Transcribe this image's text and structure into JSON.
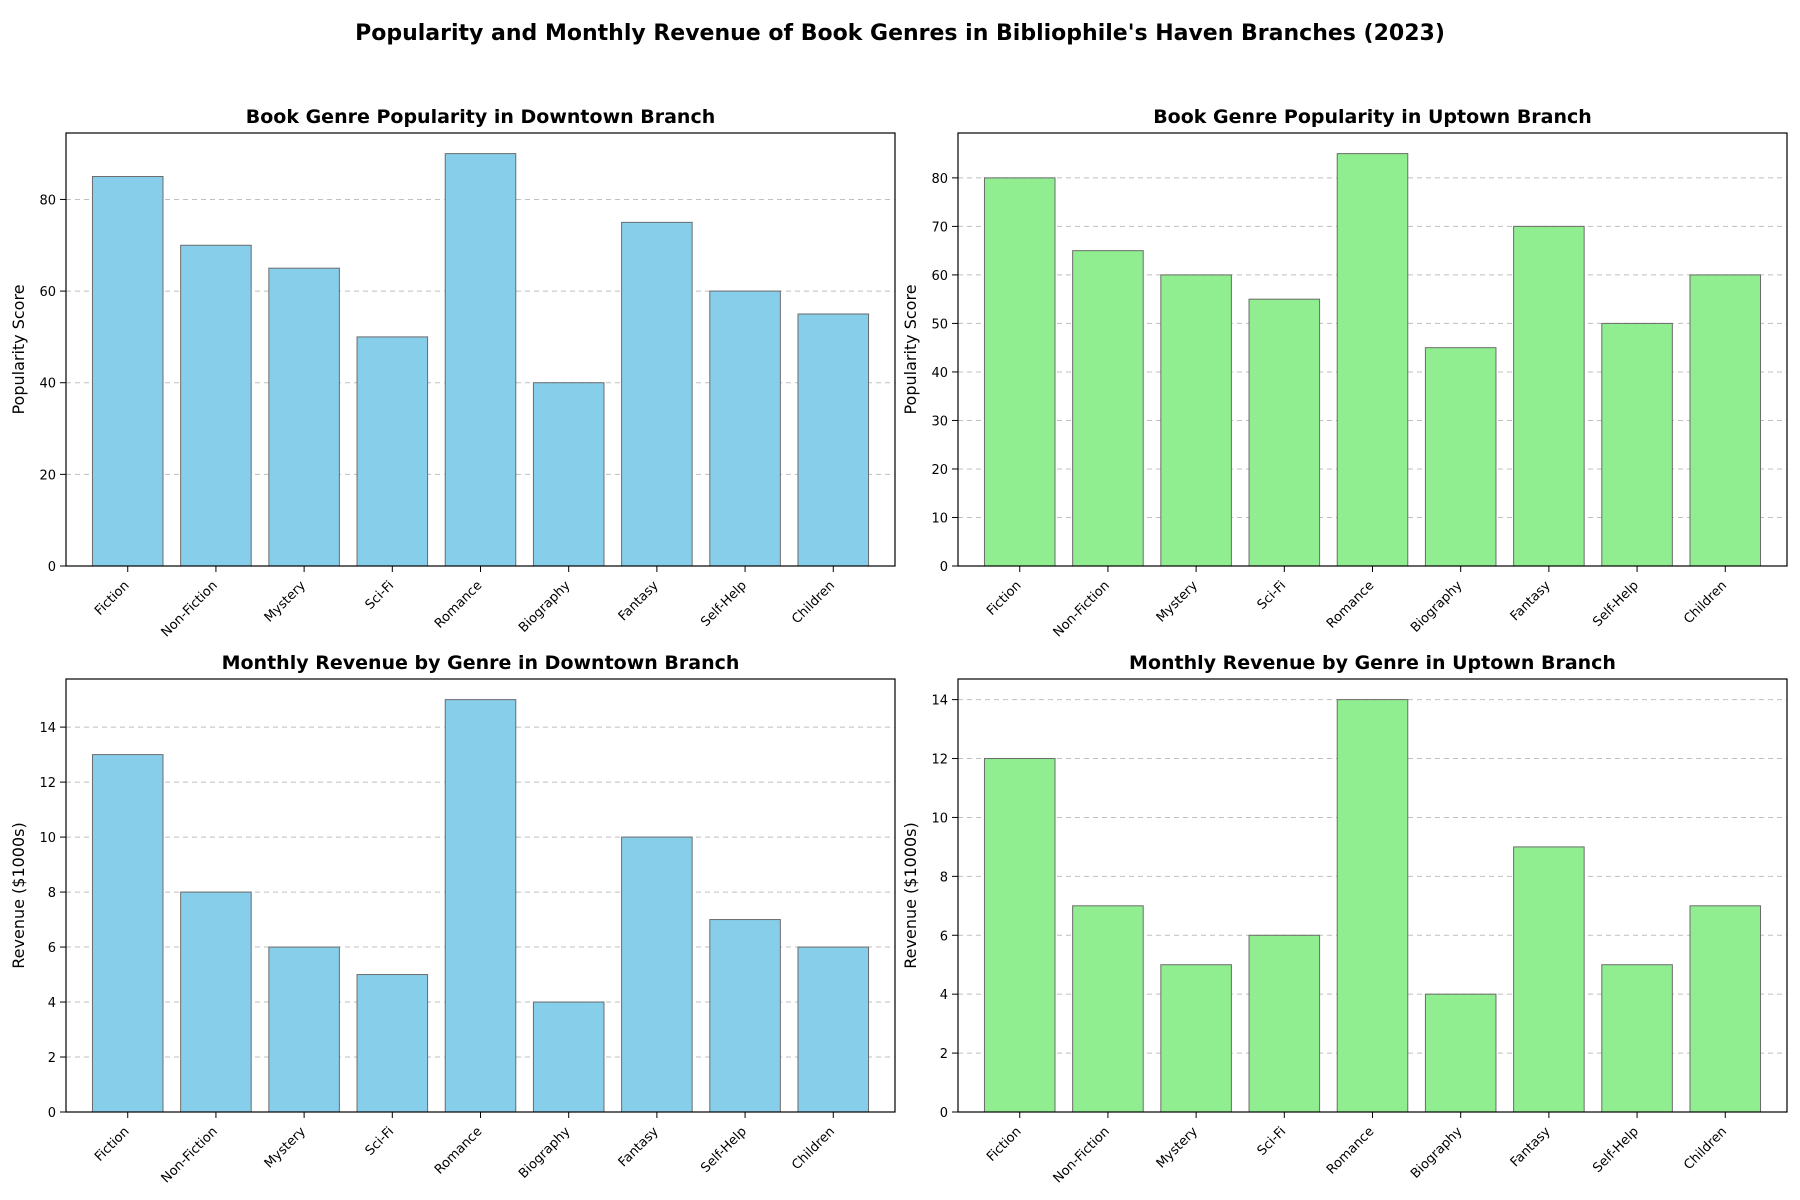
{
  "figure": {
    "title": "Popularity and Monthly Revenue of Book Genres in Bibliophile's Haven Branches (2023)"
  },
  "chart_data": [
    {
      "type": "bar",
      "title": "Book Genre Popularity in Downtown Branch",
      "xlabel": "",
      "ylabel": "Popularity Score",
      "categories": [
        "Fiction",
        "Non-Fiction",
        "Mystery",
        "Sci-Fi",
        "Romance",
        "Biography",
        "Fantasy",
        "Self-Help",
        "Children"
      ],
      "values": [
        85,
        70,
        65,
        50,
        90,
        40,
        75,
        60,
        55
      ],
      "ylim": [
        0,
        94.5
      ],
      "yticks": [
        0,
        20,
        40,
        60,
        80
      ],
      "color": "#87CEEB",
      "grid": "y-dashed"
    },
    {
      "type": "bar",
      "title": "Book Genre Popularity in Uptown Branch",
      "xlabel": "",
      "ylabel": "Popularity Score",
      "categories": [
        "Fiction",
        "Non-Fiction",
        "Mystery",
        "Sci-Fi",
        "Romance",
        "Biography",
        "Fantasy",
        "Self-Help",
        "Children"
      ],
      "values": [
        80,
        65,
        60,
        55,
        85,
        45,
        70,
        50,
        60
      ],
      "ylim": [
        0,
        89.25
      ],
      "yticks": [
        0,
        10,
        20,
        30,
        40,
        50,
        60,
        70,
        80
      ],
      "color": "#90EE90",
      "grid": "y-dashed"
    },
    {
      "type": "bar",
      "title": "Monthly Revenue by Genre in Downtown Branch",
      "xlabel": "",
      "ylabel": "Revenue ($1000s)",
      "categories": [
        "Fiction",
        "Non-Fiction",
        "Mystery",
        "Sci-Fi",
        "Romance",
        "Biography",
        "Fantasy",
        "Self-Help",
        "Children"
      ],
      "values": [
        13,
        8,
        6,
        5,
        15,
        4,
        10,
        7,
        6
      ],
      "ylim": [
        0,
        15.75
      ],
      "yticks": [
        0,
        2,
        4,
        6,
        8,
        10,
        12,
        14
      ],
      "color": "#87CEEB",
      "grid": "y-dashed"
    },
    {
      "type": "bar",
      "title": "Monthly Revenue by Genre in Uptown Branch",
      "xlabel": "",
      "ylabel": "Revenue ($1000s)",
      "categories": [
        "Fiction",
        "Non-Fiction",
        "Mystery",
        "Sci-Fi",
        "Romance",
        "Biography",
        "Fantasy",
        "Self-Help",
        "Children"
      ],
      "values": [
        12,
        7,
        5,
        6,
        14,
        4,
        9,
        5,
        7
      ],
      "ylim": [
        0,
        14.7
      ],
      "yticks": [
        0,
        2,
        4,
        6,
        8,
        10,
        12,
        14
      ],
      "color": "#90EE90",
      "grid": "y-dashed"
    }
  ]
}
